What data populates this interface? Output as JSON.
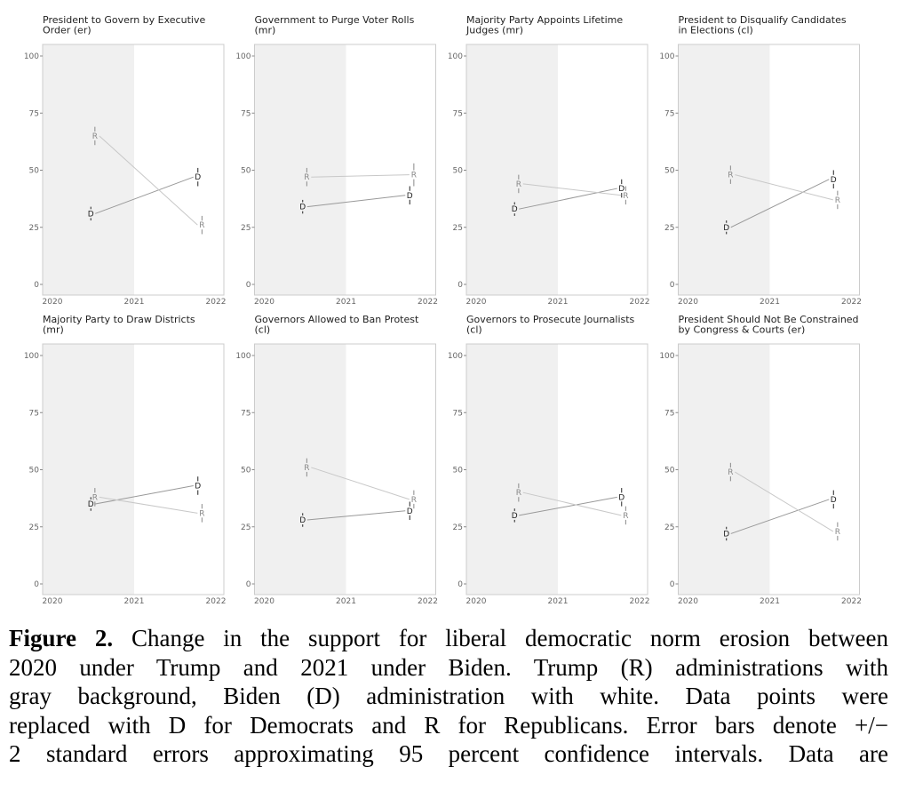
{
  "chart_data": [
    {
      "type": "line",
      "title": "President to Govern by Executive Order (er)",
      "ylim": [
        0,
        100
      ],
      "yticks": [
        0,
        25,
        50,
        75,
        100
      ],
      "xlim": [
        2020,
        2022
      ],
      "xticks": [
        2020,
        2021,
        2022
      ],
      "shaded_period": [
        2020,
        2021
      ],
      "series": [
        {
          "name": "D",
          "x": [
            2020.47,
            2021.78
          ],
          "values": [
            31,
            47
          ],
          "se2": [
            3,
            4
          ]
        },
        {
          "name": "R",
          "x": [
            2020.52,
            2021.83
          ],
          "values": [
            65,
            26
          ],
          "se2": [
            4,
            4
          ]
        }
      ]
    },
    {
      "type": "line",
      "title": "Government to Purge Voter Rolls (mr)",
      "ylim": [
        0,
        100
      ],
      "yticks": [
        0,
        25,
        50,
        75,
        100
      ],
      "xlim": [
        2020,
        2022
      ],
      "xticks": [
        2020,
        2021,
        2022
      ],
      "shaded_period": [
        2020,
        2021
      ],
      "series": [
        {
          "name": "D",
          "x": [
            2020.47,
            2021.78
          ],
          "values": [
            34,
            39
          ],
          "se2": [
            3,
            4
          ]
        },
        {
          "name": "R",
          "x": [
            2020.52,
            2021.83
          ],
          "values": [
            47,
            48
          ],
          "se2": [
            4,
            5
          ]
        }
      ]
    },
    {
      "type": "line",
      "title": "Majority Party Appoints Lifetime Judges (mr)",
      "ylim": [
        0,
        100
      ],
      "yticks": [
        0,
        25,
        50,
        75,
        100
      ],
      "xlim": [
        2020,
        2022
      ],
      "xticks": [
        2020,
        2021,
        2022
      ],
      "shaded_period": [
        2020,
        2021
      ],
      "series": [
        {
          "name": "D",
          "x": [
            2020.47,
            2021.78
          ],
          "values": [
            33,
            42
          ],
          "se2": [
            3,
            4
          ]
        },
        {
          "name": "R",
          "x": [
            2020.52,
            2021.83
          ],
          "values": [
            44,
            39
          ],
          "se2": [
            4,
            4
          ]
        }
      ]
    },
    {
      "type": "line",
      "title": "President to Disqualify Candidates in Elections (cl)",
      "ylim": [
        0,
        100
      ],
      "yticks": [
        0,
        25,
        50,
        75,
        100
      ],
      "xlim": [
        2020,
        2022
      ],
      "xticks": [
        2020,
        2021,
        2022
      ],
      "shaded_period": [
        2020,
        2021
      ],
      "series": [
        {
          "name": "D",
          "x": [
            2020.47,
            2021.78
          ],
          "values": [
            25,
            46
          ],
          "se2": [
            3,
            4
          ]
        },
        {
          "name": "R",
          "x": [
            2020.52,
            2021.83
          ],
          "values": [
            48,
            37
          ],
          "se2": [
            4,
            4
          ]
        }
      ]
    },
    {
      "type": "line",
      "title": "Majority Party to Draw Districts (mr)",
      "ylim": [
        0,
        100
      ],
      "yticks": [
        0,
        25,
        50,
        75,
        100
      ],
      "xlim": [
        2020,
        2022
      ],
      "xticks": [
        2020,
        2021,
        2022
      ],
      "shaded_period": [
        2020,
        2021
      ],
      "series": [
        {
          "name": "D",
          "x": [
            2020.47,
            2021.78
          ],
          "values": [
            35,
            43
          ],
          "se2": [
            3,
            4
          ]
        },
        {
          "name": "R",
          "x": [
            2020.52,
            2021.83
          ],
          "values": [
            38,
            31
          ],
          "se2": [
            4,
            4
          ]
        }
      ]
    },
    {
      "type": "line",
      "title": "Governors Allowed to Ban Protest (cl)",
      "ylim": [
        0,
        100
      ],
      "yticks": [
        0,
        25,
        50,
        75,
        100
      ],
      "xlim": [
        2020,
        2022
      ],
      "xticks": [
        2020,
        2021,
        2022
      ],
      "shaded_period": [
        2020,
        2021
      ],
      "series": [
        {
          "name": "D",
          "x": [
            2020.47,
            2021.78
          ],
          "values": [
            28,
            32
          ],
          "se2": [
            3,
            4
          ]
        },
        {
          "name": "R",
          "x": [
            2020.52,
            2021.83
          ],
          "values": [
            51,
            37
          ],
          "se2": [
            4,
            4
          ]
        }
      ]
    },
    {
      "type": "line",
      "title": "Governors to Prosecute Journalists (cl)",
      "ylim": [
        0,
        100
      ],
      "yticks": [
        0,
        25,
        50,
        75,
        100
      ],
      "xlim": [
        2020,
        2022
      ],
      "xticks": [
        2020,
        2021,
        2022
      ],
      "shaded_period": [
        2020,
        2021
      ],
      "series": [
        {
          "name": "D",
          "x": [
            2020.47,
            2021.78
          ],
          "values": [
            30,
            38
          ],
          "se2": [
            3,
            4
          ]
        },
        {
          "name": "R",
          "x": [
            2020.52,
            2021.83
          ],
          "values": [
            40,
            30
          ],
          "se2": [
            4,
            4
          ]
        }
      ]
    },
    {
      "type": "line",
      "title": "President Should Not Be Constrained by Congress & Courts (er)",
      "ylim": [
        0,
        100
      ],
      "yticks": [
        0,
        25,
        50,
        75,
        100
      ],
      "xlim": [
        2020,
        2022
      ],
      "xticks": [
        2020,
        2021,
        2022
      ],
      "shaded_period": [
        2020,
        2021
      ],
      "series": [
        {
          "name": "D",
          "x": [
            2020.47,
            2021.78
          ],
          "values": [
            22,
            37
          ],
          "se2": [
            3,
            4
          ]
        },
        {
          "name": "R",
          "x": [
            2020.52,
            2021.83
          ],
          "values": [
            49,
            23
          ],
          "se2": [
            4,
            4
          ]
        }
      ]
    }
  ],
  "title_lines": [
    [
      "President to Govern by Executive",
      "Order (er)"
    ],
    [
      "Government to Purge Voter Rolls",
      "(mr)"
    ],
    [
      "Majority Party Appoints Lifetime",
      "Judges (mr)"
    ],
    [
      "President to Disqualify Candidates",
      "in Elections (cl)"
    ],
    [
      "Majority Party to Draw Districts",
      "(mr)"
    ],
    [
      "Governors Allowed to Ban Protest",
      "(cl)"
    ],
    [
      "Governors to Prosecute Journalists",
      "(cl)"
    ],
    [
      "President Should Not Be Constrained",
      "by Congress & Courts (er)"
    ]
  ],
  "colors": {
    "D": "#222222",
    "R": "#888888",
    "shade": "#f0f0f0",
    "frame": "#cccccc"
  },
  "caption": {
    "label": "Figure 2.",
    "lines": [
      " Change in the support for liberal democratic norm erosion between",
      "2020 under Trump and 2021 under Biden. Trump (R) administrations with",
      "gray background, Biden (D) administration with white. Data points were",
      "replaced with D for Democrats and R for Republicans. Error bars denote +/−",
      "2 standard errors approximating 95 percent confidence intervals. Data are"
    ]
  }
}
